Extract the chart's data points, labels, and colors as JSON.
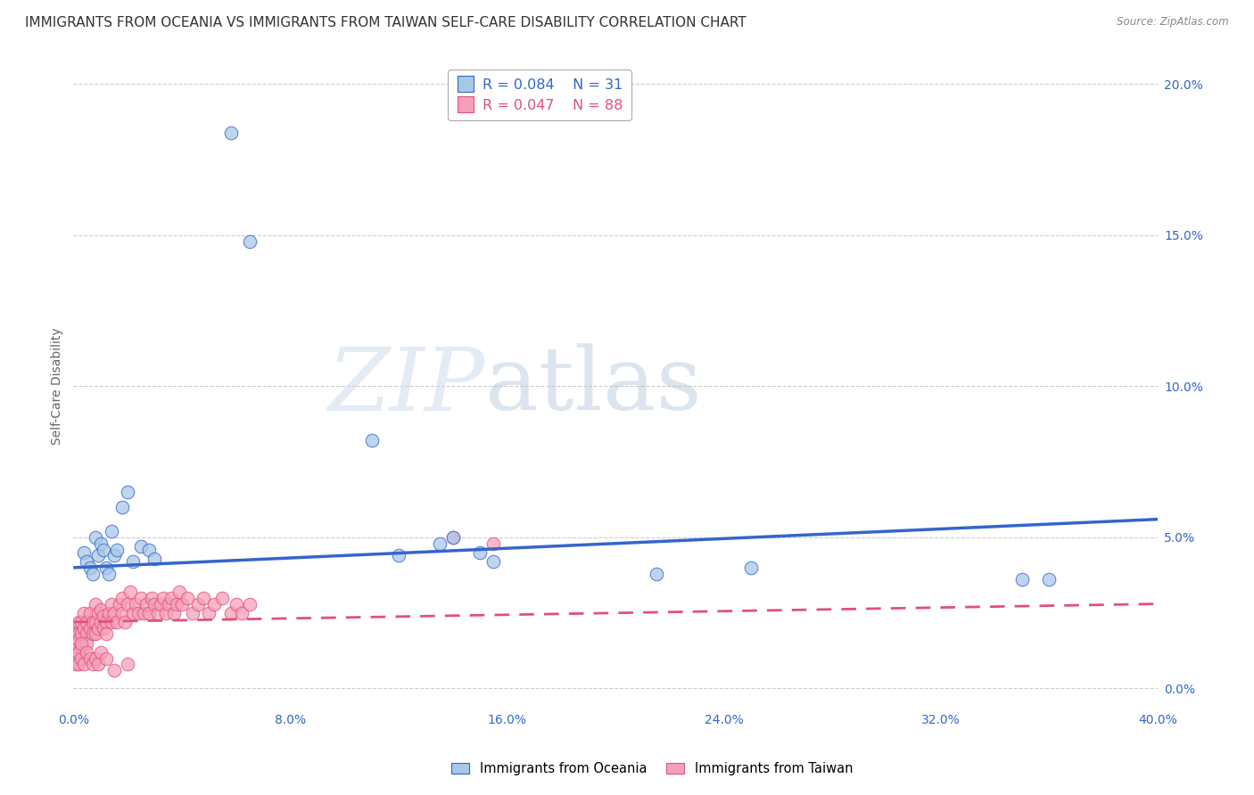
{
  "title": "IMMIGRANTS FROM OCEANIA VS IMMIGRANTS FROM TAIWAN SELF-CARE DISABILITY CORRELATION CHART",
  "source": "Source: ZipAtlas.com",
  "ylabel": "Self-Care Disability",
  "xlim": [
    0.0,
    0.4
  ],
  "ylim": [
    -0.005,
    0.205
  ],
  "xticks": [
    0.0,
    0.08,
    0.16,
    0.24,
    0.32,
    0.4
  ],
  "yticks": [
    0.0,
    0.05,
    0.1,
    0.15,
    0.2
  ],
  "color_oceania": "#A8C8E8",
  "color_taiwan": "#F5A0B8",
  "trendline_oceania_color": "#3366CC",
  "trendline_taiwan_color": "#E05080",
  "background_color": "#FFFFFF",
  "oceania_x": [
    0.058,
    0.065,
    0.004,
    0.005,
    0.006,
    0.007,
    0.008,
    0.009,
    0.01,
    0.011,
    0.012,
    0.013,
    0.014,
    0.015,
    0.016,
    0.018,
    0.02,
    0.022,
    0.025,
    0.028,
    0.03,
    0.11,
    0.12,
    0.135,
    0.14,
    0.15,
    0.155,
    0.215,
    0.25,
    0.35,
    0.36
  ],
  "oceania_y": [
    0.184,
    0.148,
    0.045,
    0.042,
    0.04,
    0.038,
    0.05,
    0.044,
    0.048,
    0.046,
    0.04,
    0.038,
    0.052,
    0.044,
    0.046,
    0.06,
    0.065,
    0.042,
    0.047,
    0.046,
    0.043,
    0.082,
    0.044,
    0.048,
    0.05,
    0.045,
    0.042,
    0.038,
    0.04,
    0.036,
    0.036
  ],
  "taiwan_x": [
    0.001,
    0.001,
    0.001,
    0.002,
    0.002,
    0.002,
    0.002,
    0.003,
    0.003,
    0.003,
    0.004,
    0.004,
    0.005,
    0.005,
    0.005,
    0.006,
    0.006,
    0.007,
    0.007,
    0.008,
    0.008,
    0.008,
    0.009,
    0.009,
    0.01,
    0.01,
    0.011,
    0.011,
    0.012,
    0.012,
    0.013,
    0.014,
    0.014,
    0.015,
    0.016,
    0.017,
    0.018,
    0.018,
    0.019,
    0.02,
    0.021,
    0.022,
    0.023,
    0.024,
    0.025,
    0.026,
    0.027,
    0.028,
    0.029,
    0.03,
    0.031,
    0.032,
    0.033,
    0.034,
    0.035,
    0.036,
    0.037,
    0.038,
    0.039,
    0.04,
    0.042,
    0.044,
    0.046,
    0.048,
    0.05,
    0.052,
    0.055,
    0.058,
    0.06,
    0.062,
    0.065,
    0.001,
    0.001,
    0.002,
    0.002,
    0.003,
    0.003,
    0.004,
    0.005,
    0.006,
    0.007,
    0.008,
    0.009,
    0.01,
    0.012,
    0.015,
    0.02,
    0.14,
    0.155
  ],
  "taiwan_y": [
    0.02,
    0.018,
    0.015,
    0.022,
    0.018,
    0.016,
    0.012,
    0.022,
    0.018,
    0.014,
    0.025,
    0.02,
    0.022,
    0.018,
    0.015,
    0.025,
    0.02,
    0.022,
    0.018,
    0.028,
    0.022,
    0.018,
    0.025,
    0.02,
    0.026,
    0.022,
    0.024,
    0.02,
    0.022,
    0.018,
    0.025,
    0.028,
    0.022,
    0.025,
    0.022,
    0.028,
    0.03,
    0.025,
    0.022,
    0.028,
    0.032,
    0.025,
    0.028,
    0.025,
    0.03,
    0.025,
    0.028,
    0.025,
    0.03,
    0.028,
    0.025,
    0.028,
    0.03,
    0.025,
    0.028,
    0.03,
    0.025,
    0.028,
    0.032,
    0.028,
    0.03,
    0.025,
    0.028,
    0.03,
    0.025,
    0.028,
    0.03,
    0.025,
    0.028,
    0.025,
    0.028,
    0.01,
    0.008,
    0.012,
    0.008,
    0.015,
    0.01,
    0.008,
    0.012,
    0.01,
    0.008,
    0.01,
    0.008,
    0.012,
    0.01,
    0.006,
    0.008,
    0.05,
    0.048
  ],
  "oceania_trend_x0": 0.0,
  "oceania_trend_y0": 0.04,
  "oceania_trend_x1": 0.4,
  "oceania_trend_y1": 0.056,
  "taiwan_trend_x0": 0.0,
  "taiwan_trend_y0": 0.022,
  "taiwan_trend_x1": 0.4,
  "taiwan_trend_y1": 0.028,
  "watermark_zip": "ZIP",
  "watermark_atlas": "atlas",
  "title_fontsize": 11,
  "axis_label_fontsize": 9,
  "tick_fontsize": 10,
  "legend_label_oceania": "Immigrants from Oceania",
  "legend_label_taiwan": "Immigrants from Taiwan"
}
